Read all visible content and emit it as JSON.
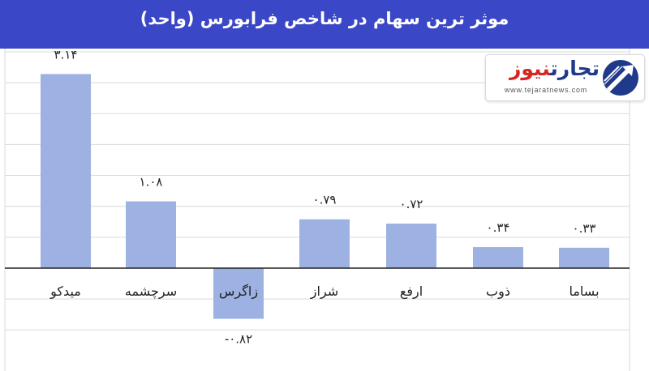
{
  "title": "موثر ترین سهام در شاخص فرابورس (واحد)",
  "logo": {
    "brand_part1": "تجارت",
    "brand_part2": "نیوز",
    "url": "www.tejaratnews.com",
    "colors": {
      "blue": "#1f3a8a",
      "red": "#d4271f"
    }
  },
  "colors": {
    "header": "#3a47c6",
    "bar": "#9db2e2",
    "grid": "#d9d9d9"
  },
  "chart_data": {
    "type": "bar",
    "title": "موثر ترین سهام در شاخص فرابورس (واحد)",
    "categories": [
      "میدکو",
      "سرچشمه",
      "زاگرس",
      "شراز",
      "ارفع",
      "ذوب",
      "بساما"
    ],
    "values": [
      3.14,
      1.08,
      -0.82,
      0.79,
      0.72,
      0.34,
      0.33
    ],
    "data_labels": [
      "۳.۱۴",
      "۱.۰۸",
      "-۰.۸۲",
      "۰.۷۹",
      "۰.۷۲",
      "۰.۳۴",
      "۰.۳۳"
    ],
    "xlabel": "",
    "ylabel": "",
    "ylim": [
      -1.5,
      3.5
    ],
    "grid": true,
    "axis_labels_visible": false
  }
}
